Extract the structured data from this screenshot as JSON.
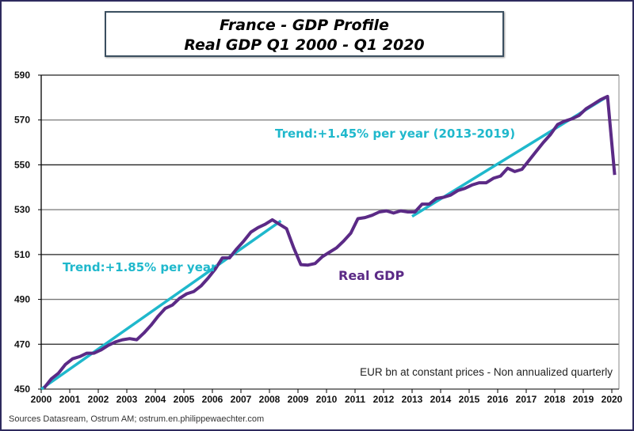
{
  "chart_data": {
    "type": "line",
    "title": "France - GDP Profile",
    "subtitle": "Real GDP Q1 2000 - Q1 2020",
    "xlabel": "",
    "ylabel": "",
    "ylim": [
      450,
      590
    ],
    "yticks": [
      450,
      470,
      490,
      510,
      530,
      550,
      570,
      590
    ],
    "xlim": [
      2000,
      2020.25
    ],
    "xticks": [
      "2000",
      "2001",
      "2002",
      "2003",
      "2004",
      "2005",
      "2006",
      "2007",
      "2008",
      "2009",
      "2010",
      "2011",
      "2012",
      "2013",
      "2014",
      "2015",
      "2016",
      "2017",
      "2018",
      "2019",
      "2020"
    ],
    "grid": true,
    "series": [
      {
        "name": "Real GDP",
        "color": "#5b2a86",
        "x_start": "2000 Q1",
        "frequency": "quarterly",
        "values": [
          450.5,
          454.5,
          457,
          461,
          463.5,
          464.5,
          466,
          466,
          467.5,
          469.5,
          471,
          472,
          472.5,
          472,
          475,
          478.5,
          482.5,
          486,
          487.5,
          490.5,
          492.5,
          493.5,
          496,
          499.5,
          503.5,
          508.5,
          508.5,
          512.5,
          516,
          520,
          522,
          523.5,
          525.5,
          523.5,
          521.5,
          513,
          505.5,
          505.3,
          506,
          509,
          511,
          513,
          516,
          519.5,
          526,
          526.5,
          527.5,
          529,
          529.5,
          528.5,
          529.5,
          529,
          529,
          532.5,
          532.5,
          535,
          535.5,
          536.5,
          538.5,
          539.5,
          541,
          542,
          542,
          544,
          545,
          548.5,
          547,
          548,
          552,
          556,
          560,
          563.5,
          568,
          569.5,
          570.5,
          572,
          575,
          577,
          579,
          580.5,
          545.5
        ]
      }
    ],
    "trends": [
      {
        "label": "Trend:+1.85% per year",
        "color": "#1fb8cc",
        "x": [
          2000.0,
          2008.4
        ],
        "y": [
          450,
          525
        ]
      },
      {
        "label": "Trend:+1.45% per year (2013-2019)",
        "color": "#1fb8cc",
        "x": [
          2013.0,
          2019.85
        ],
        "y": [
          527,
          580.5
        ]
      }
    ],
    "annotations": {
      "unit_note": "EUR bn at constant prices - Non annualized quarterly"
    }
  },
  "source": "Sources Datasream, Ostrum AM;  ostrum.en.philippewaechter.com"
}
